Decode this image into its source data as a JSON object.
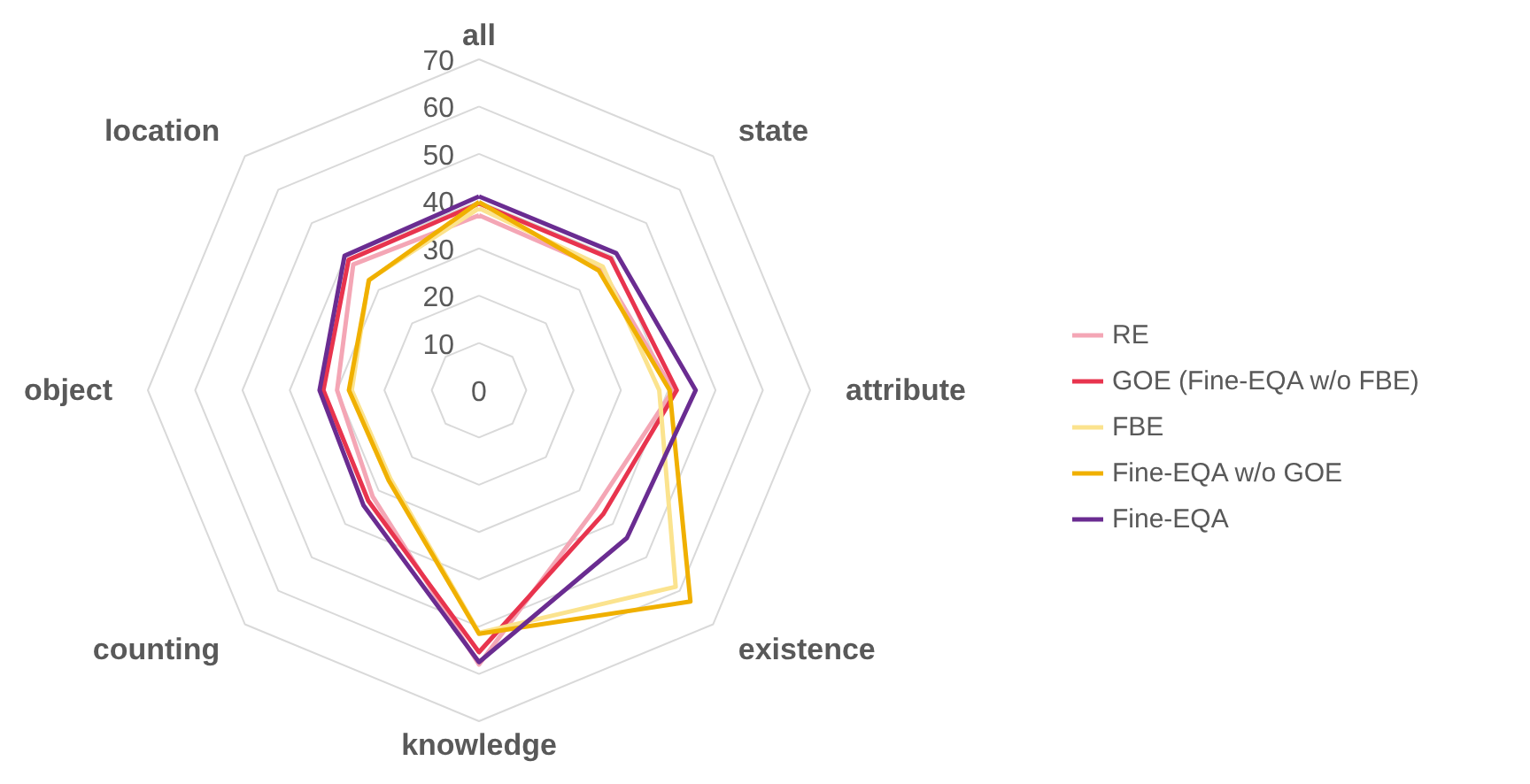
{
  "chart_data": {
    "type": "radar",
    "categories": [
      "all",
      "state",
      "attribute",
      "existence",
      "knowledge",
      "counting",
      "object",
      "location"
    ],
    "series": [
      {
        "name": "RE",
        "color": "#f4a6b5",
        "values": [
          37,
          36.5,
          41,
          35,
          58,
          31.8,
          30,
          37.6
        ]
      },
      {
        "name": "GOE (Fine-EQA w/o FBE)",
        "color": "#e8344e",
        "values": [
          39.5,
          39.4,
          41.8,
          37.1,
          55.4,
          33.1,
          32.9,
          39
        ]
      },
      {
        "name": "FBE",
        "color": "#fbe38e",
        "values": [
          38.5,
          37,
          38.1,
          58.8,
          51.3,
          26.5,
          26.9,
          33
        ]
      },
      {
        "name": "Fine-EQA w/o GOE",
        "color": "#f0b000",
        "values": [
          39.8,
          35.8,
          40.3,
          63.2,
          51.5,
          27,
          27.5,
          32.9
        ]
      },
      {
        "name": "Fine-EQA",
        "color": "#6a2c91",
        "values": [
          41,
          41,
          45.8,
          44.2,
          57.5,
          34.5,
          33.7,
          40.2
        ]
      }
    ],
    "ylim": [
      0,
      70
    ],
    "yticks": [
      0,
      10,
      20,
      30,
      40,
      50,
      60,
      70
    ],
    "grid": true,
    "legend": "right"
  }
}
